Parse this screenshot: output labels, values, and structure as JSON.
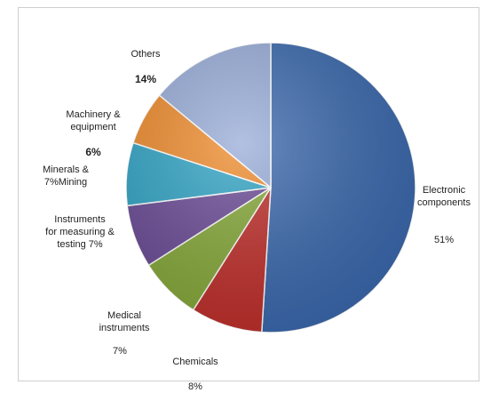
{
  "chart_data": {
    "type": "pie",
    "title": "",
    "slices": [
      {
        "label": "Electronic components",
        "value": 51,
        "value_label": "51%",
        "color": "#3a68ad"
      },
      {
        "label": "Chemicals",
        "value": 8,
        "value_label": "8%",
        "color": "#bf2e2a"
      },
      {
        "label": "Medical instruments",
        "value": 7,
        "value_label": "7%",
        "color": "#85a838"
      },
      {
        "label": "Instruments for measuring & testing",
        "value": 7,
        "value_label": "7%",
        "color": "#6a4a95"
      },
      {
        "label": "Minerals & Mining",
        "value": 7,
        "value_label": "7%",
        "color": "#2fa3c4"
      },
      {
        "label": "Machinery & equipment",
        "value": 6,
        "value_label": "6%",
        "color": "#ee8a2a"
      },
      {
        "label": "Others",
        "value": 14,
        "value_label": "14%",
        "color": "#98acd8"
      }
    ],
    "labels": {
      "electronic": "Electronic\ncomponents",
      "electronic_pct": "51%",
      "chemicals": "Chemicals",
      "chemicals_pct": "8%",
      "medical": "Medical\ninstruments",
      "medical_pct": "7%",
      "instruments": "Instruments\nfor measuring &\ntesting 7%",
      "minerals": "Minerals &\n7%Mining",
      "machinery": "Machinery &\nequipment",
      "machinery_pct": "6%",
      "others": "Others",
      "others_pct": "14%"
    }
  }
}
